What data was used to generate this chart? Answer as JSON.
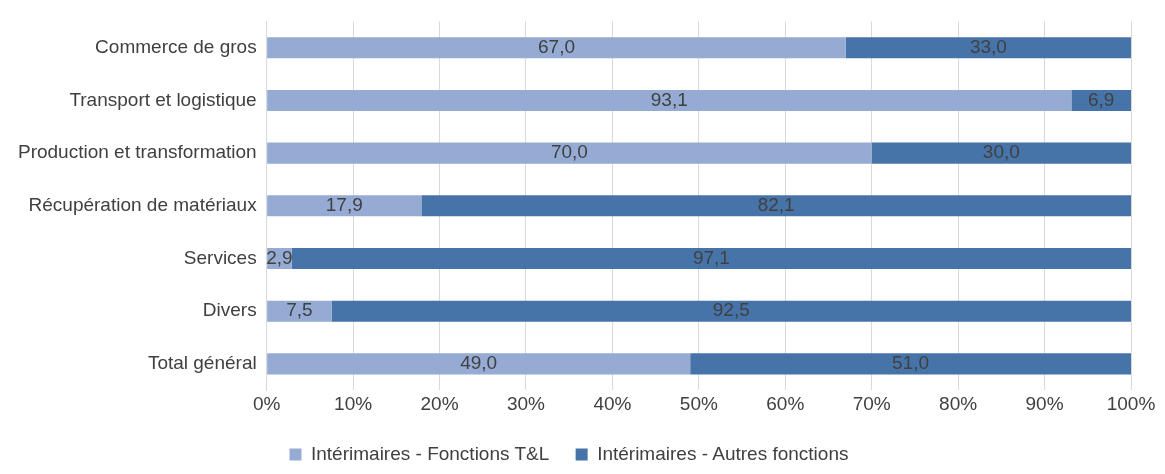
{
  "chart_data": {
    "type": "bar",
    "orientation": "horizontal",
    "stacked": true,
    "categories": [
      "Commerce de gros",
      "Transport et logistique",
      "Production et transformation",
      "Récupération de matériaux",
      "Services",
      "Divers",
      "Total général"
    ],
    "series": [
      {
        "name": "Intérimaires - Fonctions T&L",
        "color": "#95abd4",
        "values": [
          67.0,
          93.1,
          70.0,
          17.9,
          2.9,
          7.5,
          49.0
        ],
        "value_labels": [
          "67,0",
          "93,1",
          "70,0",
          "17,9",
          "2,9",
          "7,5",
          "49,0"
        ]
      },
      {
        "name": "Intérimaires - Autres fonctions",
        "color": "#4674a9",
        "values": [
          33.0,
          6.9,
          30.0,
          82.1,
          97.1,
          92.5,
          51.0
        ],
        "value_labels": [
          "33,0",
          "6,9",
          "30,0",
          "82,1",
          "97,1",
          "92,5",
          "51,0"
        ]
      }
    ],
    "xlim": [
      0,
      100
    ],
    "xticks": [
      {
        "value": 0,
        "label": "0%"
      },
      {
        "value": 10,
        "label": "10%"
      },
      {
        "value": 20,
        "label": "20%"
      },
      {
        "value": 30,
        "label": "30%"
      },
      {
        "value": 40,
        "label": "40%"
      },
      {
        "value": 50,
        "label": "50%"
      },
      {
        "value": 60,
        "label": "60%"
      },
      {
        "value": 70,
        "label": "70%"
      },
      {
        "value": 80,
        "label": "80%"
      },
      {
        "value": 90,
        "label": "90%"
      },
      {
        "value": 100,
        "label": "100%"
      }
    ],
    "grid": "x",
    "legend": "bottom"
  }
}
